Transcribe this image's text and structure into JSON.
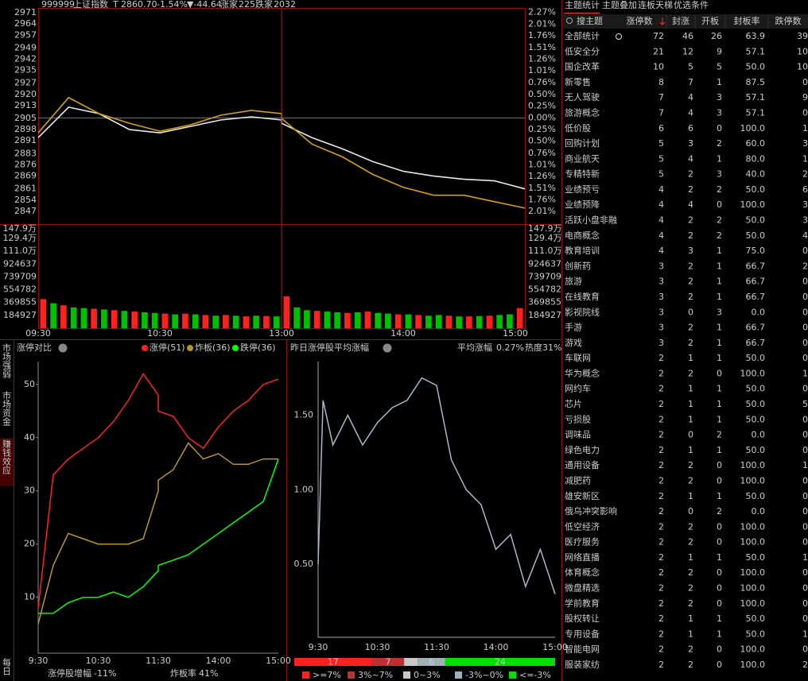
{
  "header": {
    "code": "999999",
    "name": "上证指数",
    "flag": "T",
    "price": "2860.70",
    "change_pct": "-1.54%",
    "change": "▼-44.64",
    "up_label": "涨家",
    "up_count": "225",
    "down_label": "跌家",
    "down_count": "2032"
  },
  "side_tabs": [
    "市场强弱",
    "市场资金",
    "赚钱效应",
    "每日"
  ],
  "chart_data": [
    {
      "type": "line",
      "x": [
        "09:30",
        "09:45",
        "10:00",
        "10:15",
        "10:30",
        "10:45",
        "11:00",
        "11:15",
        "11:30",
        "13:00",
        "13:15",
        "13:30",
        "13:45",
        "14:00",
        "14:15",
        "14:30",
        "14:45",
        "15:00"
      ],
      "series": [
        {
          "color": "#e8e8e8",
          "values": [
            2893,
            2912,
            2908,
            2898,
            2896,
            2900,
            2904,
            2906,
            2904,
            2902,
            2893,
            2886,
            2878,
            2872,
            2869,
            2867,
            2866,
            2861
          ]
        },
        {
          "color": "#d4a017",
          "values": [
            2896,
            2918,
            2908,
            2902,
            2897,
            2901,
            2907,
            2910,
            2908,
            2905,
            2889,
            2881,
            2870,
            2862,
            2857,
            2857,
            2853,
            2849
          ]
        }
      ],
      "ylim": [
        2839,
        2974
      ],
      "yticks": [
        2971,
        2964,
        2957,
        2949,
        2942,
        2935,
        2927,
        2920,
        2913,
        2905,
        2898,
        2891,
        2883,
        2876,
        2869,
        2861,
        2854,
        2847
      ],
      "y2lim": [
        -2.28,
        2.36
      ],
      "y2ticks": [
        {
          "value": 2.27,
          "label": "2.27%"
        },
        {
          "value": 2.01,
          "label": "2.01%"
        },
        {
          "value": 1.76,
          "label": "1.76%"
        },
        {
          "value": 1.51,
          "label": "1.51%"
        },
        {
          "value": 1.26,
          "label": "1.26%"
        },
        {
          "value": 1.01,
          "label": "1.01%"
        },
        {
          "value": 0.76,
          "label": "0.76%"
        },
        {
          "value": 0.5,
          "label": "0.50%"
        },
        {
          "value": 0.25,
          "label": "0.25%"
        },
        {
          "value": 0,
          "label": "0.00%"
        },
        {
          "value": -0.25,
          "label": "0.25%"
        },
        {
          "value": -0.5,
          "label": "0.50%"
        },
        {
          "value": -0.76,
          "label": "0.76%"
        },
        {
          "value": -1.01,
          "label": "1.01%"
        },
        {
          "value": -1.26,
          "label": "1.26%"
        },
        {
          "value": -1.51,
          "label": "1.51%"
        },
        {
          "value": -1.76,
          "label": "1.76%"
        },
        {
          "value": -2.01,
          "label": "2.01%"
        }
      ],
      "xticks": [
        "09:30",
        "10:30",
        "13:00",
        "14:00",
        "15:00"
      ]
    },
    {
      "type": "bar",
      "values": [
        420000,
        360000,
        330000,
        300000,
        290000,
        280000,
        270000,
        260000,
        250000,
        240000,
        230000,
        220000,
        210000,
        200000,
        210000,
        200000,
        190000,
        180000,
        190000,
        180000,
        170000,
        180000,
        175000,
        170000,
        460000,
        300000,
        260000,
        250000,
        240000,
        230000,
        220000,
        230000,
        240000,
        220000,
        210000,
        200000,
        200000,
        190000,
        180000,
        190000,
        180000,
        170000,
        170000,
        175000,
        180000,
        190000,
        200000,
        290000
      ],
      "colors": [
        "#ff2020",
        "#00c000",
        "#ff2020",
        "#00c000",
        "#00c000",
        "#ff2020",
        "#00c000",
        "#ff2020",
        "#00c000",
        "#ff2020",
        "#00c000",
        "#00c000",
        "#ff2020",
        "#00c000",
        "#ff2020",
        "#00c000",
        "#ff2020",
        "#00c000",
        "#ff2020",
        "#00c000",
        "#ff2020",
        "#00c000",
        "#ff2020",
        "#00c000",
        "#ff2020",
        "#00c000",
        "#00c000",
        "#ff2020",
        "#00c000",
        "#00c000",
        "#ff2020",
        "#00c000",
        "#ff2020",
        "#00c000",
        "#00c000",
        "#ff2020",
        "#00c000",
        "#ff2020",
        "#00c000",
        "#00c000",
        "#ff2020",
        "#00c000",
        "#ff2020",
        "#00c000",
        "#ff2020",
        "#00c000",
        "#00c000",
        "#ff2020"
      ],
      "ylim": [
        0,
        1479000
      ],
      "yticks": [
        {
          "value": 1479000,
          "label": "147.9万"
        },
        {
          "value": 1294000,
          "label": "129.4万"
        },
        {
          "value": 1110000,
          "label": "111.0万"
        },
        924637,
        739709,
        554782,
        369855,
        184927
      ]
    },
    {
      "type": "line",
      "title": "涨停对比",
      "x": [
        "9:30",
        "9:45",
        "10:00",
        "10:15",
        "10:30",
        "10:45",
        "11:00",
        "11:15",
        "11:30",
        "13:00",
        "13:15",
        "13:30",
        "13:45",
        "14:00",
        "14:15",
        "14:30",
        "14:45",
        "15:00"
      ],
      "series": [
        {
          "name": "涨停(51)",
          "color": "#ff2020",
          "values": [
            8,
            33,
            36,
            38,
            40,
            43,
            47,
            52,
            48,
            45,
            44,
            40,
            38,
            42,
            45,
            47,
            50,
            51
          ]
        },
        {
          "name": "炸板(36)",
          "color": "#b8962e",
          "values": [
            5,
            16,
            22,
            21,
            20,
            20,
            20,
            21,
            30,
            32,
            34,
            39,
            36,
            37,
            35,
            35,
            36,
            36
          ]
        },
        {
          "name": "跌停(36)",
          "color": "#00ff00",
          "values": [
            7,
            7,
            9,
            10,
            10,
            11,
            10,
            12,
            15,
            16,
            17,
            18,
            20,
            22,
            24,
            26,
            28,
            36
          ]
        }
      ],
      "ylim": [
        -0.5,
        54.3
      ],
      "yticks": [
        10,
        20,
        30,
        40,
        50
      ],
      "xticks": [
        "9:30",
        "10:30",
        "11:30",
        "14:00",
        "15:00"
      ],
      "footer": [
        {
          "label": "涨停股增幅",
          "value": "-11%"
        },
        {
          "label": "炸板率",
          "value": "41%"
        }
      ]
    },
    {
      "type": "line",
      "title": "昨日涨停股平均涨幅",
      "stat_label": "平均涨幅",
      "stat_value": "0.27%",
      "heat": "热度31%",
      "x": [
        "9:30",
        "9:35",
        "9:45",
        "10:00",
        "10:15",
        "10:30",
        "10:45",
        "11:00",
        "11:15",
        "11:30",
        "13:15",
        "13:30",
        "13:45",
        "14:00",
        "14:15",
        "14:30",
        "14:45",
        "15:00"
      ],
      "series": [
        {
          "color": "#a8b8c8",
          "values": [
            0.5,
            1.6,
            1.3,
            1.5,
            1.3,
            1.45,
            1.55,
            1.6,
            1.75,
            1.7,
            1.2,
            1.0,
            0.9,
            0.6,
            0.7,
            0.35,
            0.6,
            0.3
          ]
        }
      ],
      "ylim": [
        0.01,
        1.86
      ],
      "yticks": [
        {
          "value": 0.5,
          "label": "0.50"
        },
        {
          "value": 1,
          "label": "1.00"
        },
        {
          "value": 1.5,
          "label": "1.50"
        }
      ],
      "xticks": [
        "9:30",
        "10:30",
        "11:30",
        "14:00",
        "15:00"
      ]
    },
    {
      "type": "stacked_bar",
      "categories": [
        ">=7%",
        "3%~7%",
        "0~3%",
        "-3%~0%",
        "<=-3%"
      ],
      "values": [
        17,
        7,
        3,
        6,
        24
      ],
      "colors": [
        "#ff2020",
        "#c03030",
        "#c8c8c8",
        "#a0b0b8",
        "#00e000"
      ]
    }
  ],
  "table": {
    "tabs": [
      "主题统计",
      "主题叠加",
      "连板天梯",
      "优选条件"
    ],
    "search": "搜主题",
    "columns": [
      "涨停数",
      "封涨",
      "开板",
      "封板率",
      "跌停数"
    ],
    "rows": [
      [
        "全部统计",
        "72",
        "46",
        "26",
        "63.9",
        "39"
      ],
      [
        "低安全分",
        "21",
        "12",
        "9",
        "57.1",
        "10"
      ],
      [
        "国企改革",
        "10",
        "5",
        "5",
        "50.0",
        "10"
      ],
      [
        "新零售",
        "8",
        "7",
        "1",
        "87.5",
        "0"
      ],
      [
        "无人驾驶",
        "7",
        "4",
        "3",
        "57.1",
        "9"
      ],
      [
        "旅游概念",
        "7",
        "4",
        "3",
        "57.1",
        "0"
      ],
      [
        "低价股",
        "6",
        "6",
        "0",
        "100.0",
        "1"
      ],
      [
        "回购计划",
        "5",
        "3",
        "2",
        "60.0",
        "3"
      ],
      [
        "商业航天",
        "5",
        "4",
        "1",
        "80.0",
        "1"
      ],
      [
        "专精特新",
        "5",
        "2",
        "3",
        "40.0",
        "2"
      ],
      [
        "业绩预亏",
        "4",
        "2",
        "2",
        "50.0",
        "6"
      ],
      [
        "业绩预降",
        "4",
        "4",
        "0",
        "100.0",
        "3"
      ],
      [
        "活跃小盘非融",
        "4",
        "2",
        "2",
        "50.0",
        "3"
      ],
      [
        "电商概念",
        "4",
        "2",
        "2",
        "50.0",
        "4"
      ],
      [
        "教育培训",
        "4",
        "3",
        "1",
        "75.0",
        "0"
      ],
      [
        "创新药",
        "3",
        "2",
        "1",
        "66.7",
        "2"
      ],
      [
        "旅游",
        "3",
        "2",
        "1",
        "66.7",
        "0"
      ],
      [
        "在线教育",
        "3",
        "2",
        "1",
        "66.7",
        "0"
      ],
      [
        "影视院线",
        "3",
        "0",
        "3",
        "0.0",
        "0"
      ],
      [
        "手游",
        "3",
        "2",
        "1",
        "66.7",
        "0"
      ],
      [
        "游戏",
        "3",
        "2",
        "1",
        "66.7",
        "0"
      ],
      [
        "车联网",
        "2",
        "1",
        "1",
        "50.0",
        "0"
      ],
      [
        "华为概念",
        "2",
        "2",
        "0",
        "100.0",
        "1"
      ],
      [
        "网约车",
        "2",
        "1",
        "1",
        "50.0",
        "0"
      ],
      [
        "芯片",
        "2",
        "1",
        "1",
        "50.0",
        "5"
      ],
      [
        "亏损股",
        "2",
        "1",
        "1",
        "50.0",
        "0"
      ],
      [
        "调味品",
        "2",
        "0",
        "2",
        "0.0",
        "0"
      ],
      [
        "绿色电力",
        "2",
        "1",
        "1",
        "50.0",
        "0"
      ],
      [
        "通用设备",
        "2",
        "2",
        "0",
        "100.0",
        "1"
      ],
      [
        "减肥药",
        "2",
        "2",
        "0",
        "100.0",
        "0"
      ],
      [
        "雄安新区",
        "2",
        "1",
        "1",
        "50.0",
        "0"
      ],
      [
        "俄乌冲突影响",
        "2",
        "0",
        "2",
        "0.0",
        "0"
      ],
      [
        "低空经济",
        "2",
        "2",
        "0",
        "100.0",
        "0"
      ],
      [
        "医疗服务",
        "2",
        "2",
        "0",
        "100.0",
        "0"
      ],
      [
        "网络直播",
        "2",
        "1",
        "1",
        "50.0",
        "1"
      ],
      [
        "体育概念",
        "2",
        "2",
        "0",
        "100.0",
        "0"
      ],
      [
        "微盘精选",
        "2",
        "2",
        "0",
        "100.0",
        "0"
      ],
      [
        "学前教育",
        "2",
        "2",
        "0",
        "100.0",
        "0"
      ],
      [
        "股权转让",
        "2",
        "1",
        "1",
        "50.0",
        "0"
      ],
      [
        "专用设备",
        "2",
        "1",
        "1",
        "50.0",
        "1"
      ],
      [
        "智能电网",
        "2",
        "2",
        "0",
        "100.0",
        "0"
      ],
      [
        "服装家纺",
        "2",
        "2",
        "0",
        "100.0",
        "2"
      ]
    ]
  }
}
